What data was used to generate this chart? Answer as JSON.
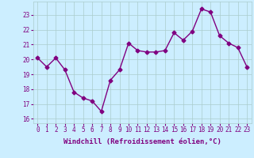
{
  "x": [
    0,
    1,
    2,
    3,
    4,
    5,
    6,
    7,
    8,
    9,
    10,
    11,
    12,
    13,
    14,
    15,
    16,
    17,
    18,
    19,
    20,
    21,
    22,
    23
  ],
  "y": [
    20.1,
    19.5,
    20.1,
    19.3,
    17.8,
    17.4,
    17.2,
    16.5,
    18.6,
    19.3,
    21.1,
    20.6,
    20.5,
    20.5,
    20.6,
    21.8,
    21.3,
    21.9,
    23.4,
    23.2,
    21.6,
    21.1,
    20.8,
    19.5
  ],
  "xlim": [
    -0.5,
    23.5
  ],
  "ylim": [
    15.7,
    23.9
  ],
  "yticks": [
    16,
    17,
    18,
    19,
    20,
    21,
    22,
    23
  ],
  "xticks": [
    0,
    1,
    2,
    3,
    4,
    5,
    6,
    7,
    8,
    9,
    10,
    11,
    12,
    13,
    14,
    15,
    16,
    17,
    18,
    19,
    20,
    21,
    22,
    23
  ],
  "xlabel": "Windchill (Refroidissement éolien,°C)",
  "line_color": "#800080",
  "marker": "D",
  "marker_size": 2.5,
  "line_width": 1.0,
  "bg_color": "#cceeff",
  "grid_color": "#aacccc",
  "tick_label_color": "#800080",
  "axis_label_color": "#800080",
  "tick_fontsize": 5.5,
  "xlabel_fontsize": 6.5
}
